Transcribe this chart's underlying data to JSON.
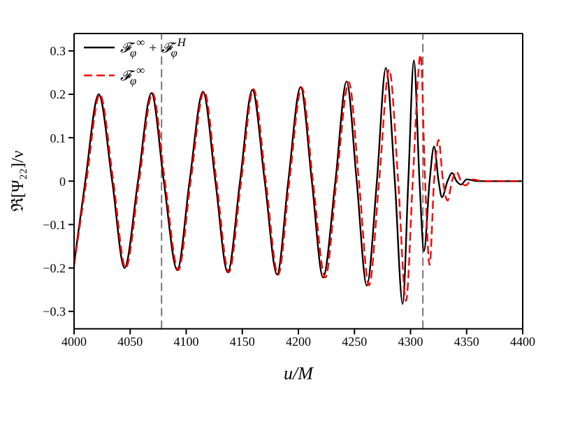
{
  "chart_data": {
    "type": "line",
    "xlabel": "u/M",
    "ylabel": "ℜ[Ψ₂₂]/ν",
    "xlim": [
      4000,
      4400
    ],
    "xticks": [
      4000,
      4050,
      4100,
      4150,
      4200,
      4250,
      4300,
      4350,
      4400
    ],
    "ylim": [
      -0.34,
      0.34
    ],
    "yticks": [
      {
        "value": -0.3,
        "label": "−0.3"
      },
      {
        "value": -0.2,
        "label": "−0.2"
      },
      {
        "value": -0.1,
        "label": "−0.1"
      },
      0,
      0.1,
      0.2,
      0.3
    ],
    "legend": "top left",
    "grid": false,
    "marker": "none",
    "ref_lines": [
      {
        "axis": "x",
        "value": 4078,
        "color": "#777777",
        "line_style": "dashed"
      },
      {
        "axis": "x",
        "value": 4311,
        "color": "#777777",
        "line_style": "dashed"
      }
    ],
    "series": [
      {
        "name": "𝓕$_{φ}$$^{∞}$ + 𝓕$_{φ}$$^{H}$",
        "color": "#000000",
        "line_style": "solid",
        "x": [
          4000,
          4010,
          4022,
          4034,
          4045,
          4057,
          4069,
          4080,
          4092,
          4103,
          4115,
          4126,
          4137,
          4148,
          4159,
          4170,
          4181,
          4191,
          4202,
          4212,
          4222,
          4233,
          4243,
          4252,
          4261,
          4270,
          4278,
          4286,
          4293,
          4298,
          4303,
          4308,
          4312,
          4317,
          4321,
          4325,
          4328,
          4333,
          4337,
          4341,
          4345,
          4350,
          4360,
          4400
        ],
        "values": [
          -0.19,
          0,
          0.2,
          0,
          -0.2,
          0,
          0.203,
          0,
          -0.205,
          0,
          0.206,
          0,
          -0.21,
          0,
          0.21,
          0,
          -0.215,
          0,
          0.217,
          0,
          -0.222,
          0,
          0.23,
          0,
          -0.241,
          0,
          0.261,
          0,
          -0.283,
          0,
          0.278,
          0,
          -0.161,
          0,
          0.08,
          0,
          -0.037,
          0,
          0.019,
          0,
          -0.008,
          0.004,
          0,
          0
        ]
      },
      {
        "name": "𝓕$_{φ}$$^{∞}$",
        "color": "#ff0000",
        "line_style": "dashed",
        "x": [
          4000,
          4011,
          4023,
          4035,
          4046,
          4058,
          4070,
          4081,
          4093,
          4104,
          4116,
          4127,
          4138,
          4149,
          4160,
          4171,
          4182,
          4192,
          4203,
          4213,
          4224,
          4234,
          4245,
          4254,
          4263,
          4272,
          4281,
          4289,
          4296,
          4302,
          4309,
          4313,
          4317,
          4321,
          4325,
          4329,
          4333,
          4337,
          4341,
          4345,
          4349,
          4355,
          4365,
          4400
        ],
        "values": [
          -0.195,
          0,
          0.2,
          0,
          -0.2,
          0,
          0.203,
          0,
          -0.205,
          0,
          0.207,
          0,
          -0.21,
          0,
          0.212,
          0,
          -0.216,
          0,
          0.216,
          0,
          -0.222,
          0,
          0.228,
          0,
          -0.24,
          0,
          0.257,
          0,
          -0.276,
          0,
          0.291,
          0,
          -0.193,
          0,
          0.095,
          0,
          -0.045,
          0,
          0.022,
          0,
          -0.01,
          0.004,
          0,
          0
        ]
      }
    ]
  }
}
